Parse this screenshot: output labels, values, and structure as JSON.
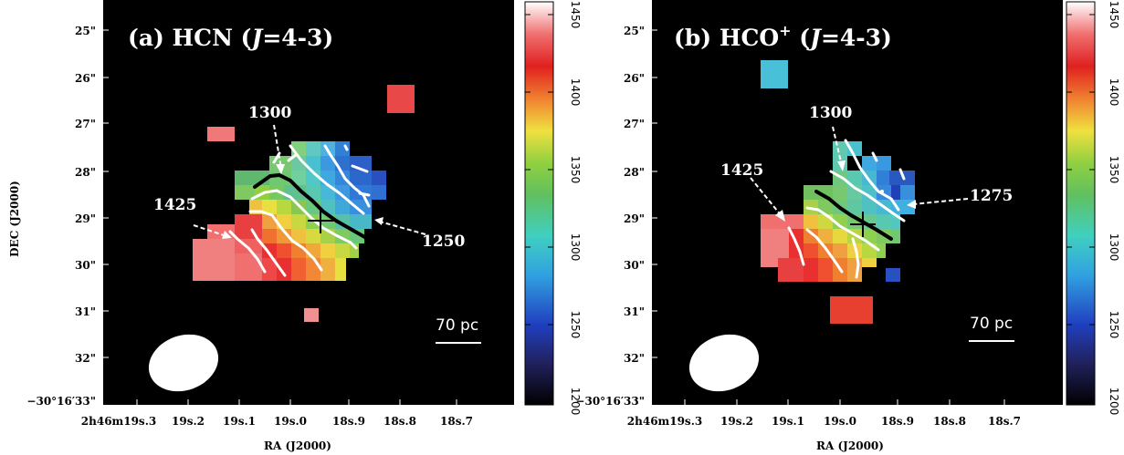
{
  "panels": [
    {
      "id": "a",
      "title_prefix": "(a) HCN (",
      "title_J": "J",
      "title_suffix": "=4-3)",
      "title_sup": "",
      "contour_labels": [
        "1300",
        "1425",
        "1250"
      ],
      "scalebar_label": "70 pc",
      "colorbar_ticks": [
        "1450",
        "1400",
        "1350",
        "1300",
        "1250",
        "1200"
      ]
    },
    {
      "id": "b",
      "title_prefix": "(b) HCO",
      "title_sup": "+",
      "title_J": "J",
      "title_suffix": "=4-3)",
      "contour_labels": [
        "1300",
        "1425",
        "1275"
      ],
      "scalebar_label": "70 pc",
      "colorbar_ticks": [
        "1450",
        "1400",
        "1350",
        "1300",
        "1250",
        "1200"
      ]
    }
  ],
  "axes": {
    "ylabel": "DEC (J2000)",
    "xlabel": "RA (J2000)",
    "dec_ticks": [
      "25\"",
      "26\"",
      "27\"",
      "28\"",
      "29\"",
      "30\"",
      "31\"",
      "32\"",
      "−30°16′33\""
    ],
    "ra_ticks": [
      "2h46m19s.3",
      "19s.2",
      "19s.1",
      "19s.0",
      "18s.9",
      "18s.8",
      "18s.7"
    ]
  },
  "colorbar": {
    "min": 1200,
    "max": 1450,
    "cmap": "rainbow (black-blue-cyan-green-yellow-red-white)"
  },
  "colors": {
    "background": "#000000",
    "contour": "#ffffff",
    "axis_text": "#000000"
  }
}
